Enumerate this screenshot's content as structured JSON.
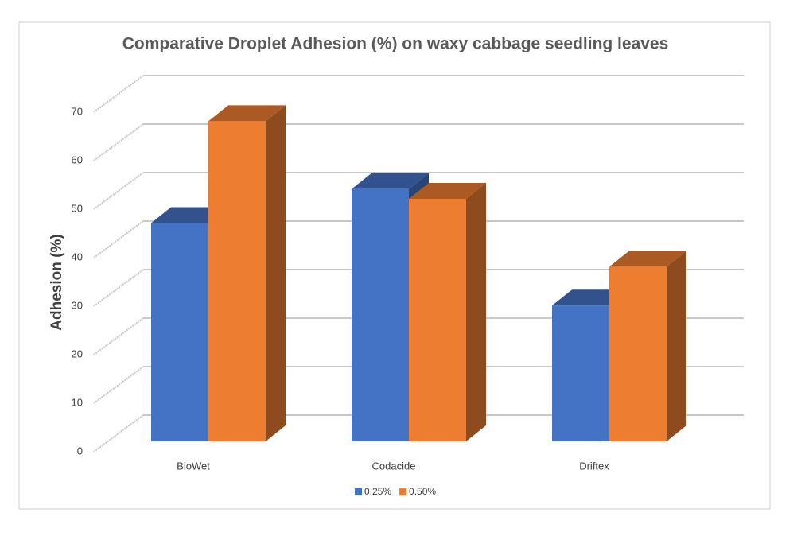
{
  "chart_data": {
    "type": "bar3d",
    "title": "Comparative Droplet Adhesion (%) on waxy cabbage seedling leaves",
    "y_label": "Adhesion (%)",
    "categories": [
      "BioWet",
      "Codacide",
      "Driftex"
    ],
    "series": [
      {
        "name": "0.25%",
        "color": "#4472c4",
        "values": [
          45,
          52,
          28
        ]
      },
      {
        "name": "0.50%",
        "color": "#ed7d31",
        "values": [
          66,
          50,
          36
        ]
      }
    ],
    "ylim": [
      0,
      70
    ],
    "yticks": [
      0,
      10,
      20,
      30,
      40,
      50,
      60,
      70
    ],
    "grid": true,
    "legend": "bottom"
  }
}
